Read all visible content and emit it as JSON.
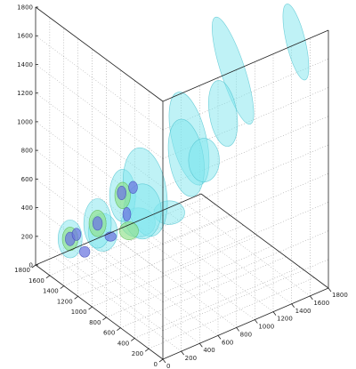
{
  "chart_data": {
    "type": "isosurface",
    "title": "",
    "xlabel": "",
    "ylabel": "",
    "zlabel": "",
    "z_axis": {
      "range": [
        0,
        1800
      ],
      "ticks": [
        0,
        200,
        400,
        600,
        800,
        1000,
        1200,
        1400,
        1600,
        1800
      ]
    },
    "y_axis": {
      "range": [
        0,
        1800
      ],
      "ticks": [
        0,
        200,
        400,
        600,
        800,
        1000,
        1200,
        1400,
        1600,
        1800
      ]
    },
    "x_axis": {
      "range": [
        0,
        1800
      ],
      "ticks": [
        0,
        200,
        400,
        600,
        800,
        1000,
        1200,
        1400,
        1600,
        1800
      ]
    },
    "grid": true,
    "colors": {
      "outer_surface": "#7fe6ee",
      "outer_stroke": "#4fc3cf",
      "mid_surface": "#8fe08a",
      "mid_stroke": "#5ab64f",
      "core_surface": "#6f7ae0",
      "core_stroke": "#3e47b8"
    },
    "blobs": [
      {
        "level": "outer",
        "x": 160,
        "y": 1520,
        "z": 240,
        "rx": 120,
        "ry": 130,
        "rz": 120,
        "lean": 0
      },
      {
        "level": "outer",
        "x": 500,
        "y": 1500,
        "z": 200,
        "rx": 150,
        "ry": 130,
        "rz": 120,
        "lean": 0
      },
      {
        "level": "outer",
        "x": 900,
        "y": 1520,
        "z": 150,
        "rx": 180,
        "ry": 100,
        "rz": 90,
        "lean": 0
      },
      {
        "level": "outer",
        "x": 1300,
        "y": 1600,
        "z": 80,
        "rx": 160,
        "ry": 100,
        "rz": 70,
        "lean": 0
      },
      {
        "level": "outer",
        "x": 120,
        "y": 1080,
        "z": 520,
        "rx": 120,
        "ry": 160,
        "rz": 160,
        "lean": 0
      },
      {
        "level": "outer",
        "x": 100,
        "y": 700,
        "z": 860,
        "rx": 100,
        "ry": 150,
        "rz": 170,
        "lean": 0
      },
      {
        "level": "outer",
        "x": 500,
        "y": 900,
        "z": 700,
        "rx": 220,
        "ry": 260,
        "rz": 300,
        "lean": 0.2
      },
      {
        "level": "outer",
        "x": 900,
        "y": 800,
        "z": 1000,
        "rx": 180,
        "ry": 160,
        "rz": 320,
        "lean": 0.3
      },
      {
        "level": "outer",
        "x": 1300,
        "y": 700,
        "z": 1400,
        "rx": 120,
        "ry": 100,
        "rz": 380,
        "lean": 0.4
      },
      {
        "level": "outer",
        "x": 1600,
        "y": 200,
        "z": 1700,
        "rx": 90,
        "ry": 90,
        "rz": 260,
        "lean": 0.3
      },
      {
        "level": "outer",
        "x": 1100,
        "y": 1100,
        "z": 700,
        "rx": 180,
        "ry": 180,
        "rz": 260,
        "lean": 0.2
      },
      {
        "level": "outer",
        "x": 1500,
        "y": 1100,
        "z": 900,
        "rx": 140,
        "ry": 140,
        "rz": 220,
        "lean": 0.2
      },
      {
        "level": "outer",
        "x": 1600,
        "y": 1500,
        "z": 400,
        "rx": 160,
        "ry": 160,
        "rz": 140,
        "lean": 0
      },
      {
        "level": "outer",
        "x": 700,
        "y": 1200,
        "z": 400,
        "rx": 200,
        "ry": 200,
        "rz": 180,
        "lean": 0
      },
      {
        "level": "mid",
        "x": 160,
        "y": 1520,
        "z": 240,
        "rx": 70,
        "ry": 80,
        "rz": 70,
        "lean": 0
      },
      {
        "level": "mid",
        "x": 120,
        "y": 1080,
        "z": 520,
        "rx": 70,
        "ry": 90,
        "rz": 80,
        "lean": 0
      },
      {
        "level": "mid",
        "x": 100,
        "y": 700,
        "z": 860,
        "rx": 60,
        "ry": 80,
        "rz": 80,
        "lean": 0
      },
      {
        "level": "mid",
        "x": 800,
        "y": 1520,
        "z": 120,
        "rx": 90,
        "ry": 70,
        "rz": 50,
        "lean": 0
      },
      {
        "level": "core",
        "x": 160,
        "y": 1520,
        "z": 240,
        "rx": 35,
        "ry": 40,
        "rz": 35,
        "lean": 0
      },
      {
        "level": "core",
        "x": 120,
        "y": 1080,
        "z": 520,
        "rx": 30,
        "ry": 40,
        "rz": 35,
        "lean": 0
      },
      {
        "level": "core",
        "x": 90,
        "y": 700,
        "z": 880,
        "rx": 30,
        "ry": 35,
        "rz": 35,
        "lean": 0
      },
      {
        "level": "core",
        "x": 60,
        "y": 500,
        "z": 1000,
        "rx": 25,
        "ry": 35,
        "rz": 30,
        "lean": 0
      },
      {
        "level": "core",
        "x": 380,
        "y": 1600,
        "z": 60,
        "rx": 40,
        "ry": 30,
        "rz": 25,
        "lean": 0
      },
      {
        "level": "core",
        "x": 700,
        "y": 1650,
        "z": 60,
        "rx": 45,
        "ry": 25,
        "rz": 20,
        "lean": 0
      },
      {
        "level": "core",
        "x": 60,
        "y": 1300,
        "z": 380,
        "rx": 25,
        "ry": 35,
        "rz": 30,
        "lean": 0
      },
      {
        "level": "core",
        "x": 300,
        "y": 900,
        "z": 600,
        "rx": 25,
        "ry": 30,
        "rz": 35,
        "lean": 0
      }
    ]
  }
}
